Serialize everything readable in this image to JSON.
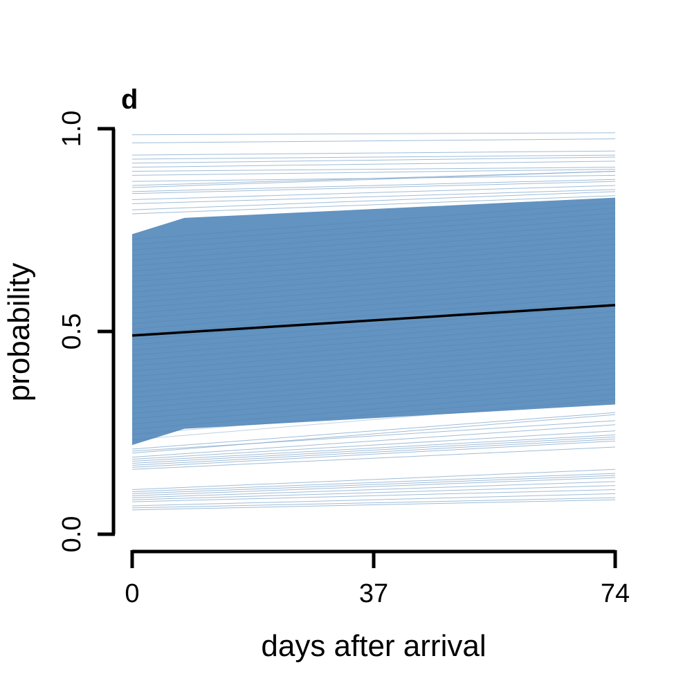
{
  "chart_data": {
    "type": "line",
    "panel_label": "d",
    "xlabel": "days after arrival",
    "ylabel": "probability",
    "xlim": [
      0,
      74
    ],
    "ylim": [
      0,
      1
    ],
    "x_ticks": [
      0,
      37,
      74
    ],
    "x_tick_labels": [
      "0",
      "37",
      "74"
    ],
    "y_ticks": [
      0,
      0.5,
      1
    ],
    "y_tick_labels": [
      "0.0",
      "0.5",
      "1.0"
    ],
    "mean_line": {
      "x": [
        0,
        74
      ],
      "y": [
        0.49,
        0.565
      ]
    },
    "interval_band": {
      "x": [
        0,
        8,
        74
      ],
      "lower": [
        0.22,
        0.26,
        0.32
      ],
      "upper": [
        0.74,
        0.78,
        0.83
      ]
    },
    "sample_lines": {
      "x": [
        0,
        74
      ],
      "start_end": [
        [
          0.985,
          0.99
        ],
        [
          0.965,
          0.975
        ],
        [
          0.935,
          0.945
        ],
        [
          0.925,
          0.935
        ],
        [
          0.915,
          0.93
        ],
        [
          0.905,
          0.92
        ],
        [
          0.895,
          0.905
        ],
        [
          0.885,
          0.9
        ],
        [
          0.87,
          0.885
        ],
        [
          0.86,
          0.895
        ],
        [
          0.855,
          0.895
        ],
        [
          0.845,
          0.875
        ],
        [
          0.84,
          0.87
        ],
        [
          0.825,
          0.86
        ],
        [
          0.815,
          0.85
        ],
        [
          0.8,
          0.845
        ],
        [
          0.79,
          0.835
        ],
        [
          0.21,
          0.3
        ],
        [
          0.205,
          0.28
        ],
        [
          0.2,
          0.295
        ],
        [
          0.19,
          0.27
        ],
        [
          0.185,
          0.255
        ],
        [
          0.18,
          0.245
        ],
        [
          0.175,
          0.24
        ],
        [
          0.17,
          0.235
        ],
        [
          0.165,
          0.23
        ],
        [
          0.16,
          0.215
        ],
        [
          0.11,
          0.16
        ],
        [
          0.105,
          0.15
        ],
        [
          0.1,
          0.145
        ],
        [
          0.095,
          0.14
        ],
        [
          0.09,
          0.13
        ],
        [
          0.085,
          0.12
        ],
        [
          0.08,
          0.11
        ],
        [
          0.07,
          0.1
        ],
        [
          0.065,
          0.09
        ],
        [
          0.06,
          0.085
        ]
      ]
    },
    "colors": {
      "band": "#5b8dbd",
      "sample_line": "#7ea6cb",
      "mean_line": "#000000",
      "axis": "#000000"
    }
  }
}
